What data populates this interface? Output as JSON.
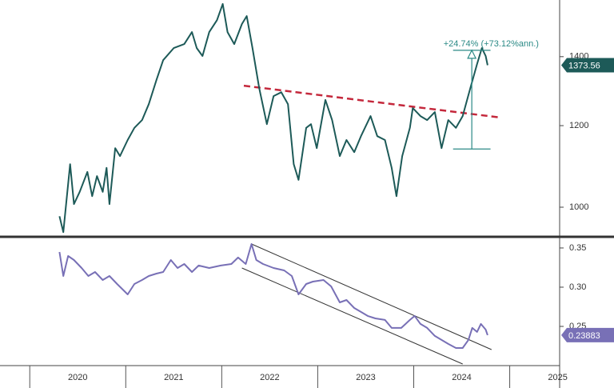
{
  "chart_data": [
    {
      "type": "line",
      "color": "#1d5a58",
      "log_scale": true,
      "xlim": [
        2019.69,
        2025.52
      ],
      "ylim": [
        936,
        1589
      ],
      "yticks": [
        1000,
        1200,
        1400
      ],
      "x": [
        2020.31,
        2020.35,
        2020.42,
        2020.46,
        2020.52,
        2020.6,
        2020.65,
        2020.7,
        2020.76,
        2020.8,
        2020.83,
        2020.89,
        2020.94,
        2021.02,
        2021.09,
        2021.17,
        2021.24,
        2021.32,
        2021.39,
        2021.5,
        2021.61,
        2021.69,
        2021.74,
        2021.8,
        2021.87,
        2021.95,
        2022.01,
        2022.06,
        2022.13,
        2022.21,
        2022.26,
        2022.32,
        2022.39,
        2022.47,
        2022.54,
        2022.62,
        2022.69,
        2022.75,
        2022.8,
        2022.88,
        2022.93,
        2022.99,
        2023.08,
        2023.15,
        2023.23,
        2023.3,
        2023.38,
        2023.45,
        2023.55,
        2023.62,
        2023.7,
        2023.77,
        2023.82,
        2023.88,
        2023.96,
        2023.99,
        2024.07,
        2024.14,
        2024.22,
        2024.29,
        2024.36,
        2024.44,
        2024.51,
        2024.59,
        2024.66,
        2024.71,
        2024.75,
        2024.77
      ],
      "values": [
        980,
        946,
        1101,
        1007,
        1035,
        1082,
        1025,
        1072,
        1035,
        1092,
        1007,
        1141,
        1121,
        1162,
        1194,
        1215,
        1259,
        1329,
        1389,
        1427,
        1440,
        1479,
        1427,
        1402,
        1479,
        1519,
        1575,
        1479,
        1440,
        1506,
        1533,
        1427,
        1305,
        1204,
        1282,
        1293,
        1259,
        1101,
        1063,
        1194,
        1204,
        1141,
        1271,
        1215,
        1121,
        1162,
        1131,
        1172,
        1226,
        1172,
        1162,
        1092,
        1025,
        1121,
        1194,
        1248,
        1226,
        1215,
        1237,
        1141,
        1215,
        1194,
        1226,
        1305,
        1377,
        1427,
        1402,
        1373.56
      ],
      "trend_line": {
        "color": "#c4283c",
        "x": [
          2022.23,
          2024.9
        ],
        "values": [
          1312,
          1222
        ]
      },
      "measure": {
        "color": "#2b8a86",
        "x": [
          2024.41,
          2024.8
        ],
        "values": [
          1139,
          1420
        ],
        "label": "+24.74% (+73.12%ann.)"
      }
    },
    {
      "type": "line",
      "color": "#7870b6",
      "xlim": [
        2019.69,
        2025.52
      ],
      "ylim": [
        0.2,
        0.3622
      ],
      "yticks": [
        0.25,
        {
          "value": 0.3,
          "label": "0.30"
        },
        0.35
      ],
      "xticks": [
        2020,
        2021,
        2022,
        2023,
        2024,
        2025
      ],
      "x": [
        2020.31,
        2020.35,
        2020.4,
        2020.46,
        2020.54,
        2020.61,
        2020.68,
        2020.76,
        2020.83,
        2020.91,
        2021.02,
        2021.09,
        2021.17,
        2021.24,
        2021.32,
        2021.39,
        2021.47,
        2021.54,
        2021.61,
        2021.69,
        2021.76,
        2021.87,
        2021.99,
        2022.1,
        2022.17,
        2022.25,
        2022.31,
        2022.36,
        2022.43,
        2022.54,
        2022.65,
        2022.73,
        2022.8,
        2022.88,
        2022.95,
        2023.06,
        2023.14,
        2023.23,
        2023.3,
        2023.38,
        2023.45,
        2023.52,
        2023.6,
        2023.7,
        2023.77,
        2023.87,
        2023.96,
        2024.01,
        2024.07,
        2024.14,
        2024.22,
        2024.29,
        2024.36,
        2024.44,
        2024.51,
        2024.57,
        2024.61,
        2024.66,
        2024.7,
        2024.75,
        2024.77
      ],
      "values": [
        0.3449,
        0.3143,
        0.3398,
        0.3347,
        0.3245,
        0.3143,
        0.3194,
        0.3092,
        0.3143,
        0.3041,
        0.2908,
        0.3041,
        0.3092,
        0.3143,
        0.3173,
        0.3194,
        0.3347,
        0.3245,
        0.3296,
        0.3194,
        0.3276,
        0.3245,
        0.3276,
        0.3296,
        0.3378,
        0.3296,
        0.3551,
        0.3347,
        0.3296,
        0.3245,
        0.3214,
        0.3143,
        0.2908,
        0.3041,
        0.3071,
        0.3092,
        0.301,
        0.2806,
        0.2837,
        0.2735,
        0.2684,
        0.2633,
        0.2602,
        0.2582,
        0.248,
        0.248,
        0.2582,
        0.2633,
        0.2531,
        0.248,
        0.2378,
        0.2327,
        0.2276,
        0.2224,
        0.2224,
        0.2327,
        0.248,
        0.2429,
        0.2531,
        0.2459,
        0.23883
      ],
      "channel": {
        "color": "#333333",
        "upper": {
          "x": [
            2022.31,
            2024.81
          ],
          "values": [
            0.3551,
            0.2204
          ]
        },
        "lower": {
          "x": [
            2022.21,
            2024.51
          ],
          "values": [
            0.3245,
            0.202
          ]
        }
      }
    }
  ]
}
